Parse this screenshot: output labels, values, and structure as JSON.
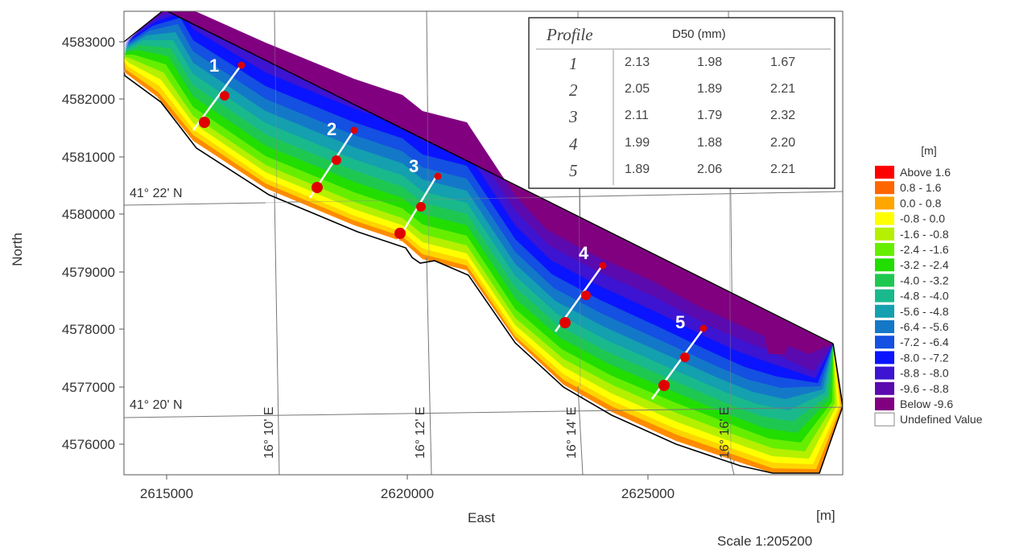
{
  "axes": {
    "x_title": "East",
    "y_title": "North",
    "unit": "[m]",
    "scale": "Scale 1:205200",
    "x_ticks": [
      "2615000",
      "2620000",
      "2625000"
    ],
    "y_ticks": [
      "4583000",
      "4582000",
      "4581000",
      "4580000",
      "4579000",
      "4578000",
      "4577000",
      "4576000"
    ]
  },
  "graticule": {
    "lat_labels": [
      "41° 22' N",
      "41° 20' N"
    ],
    "lon_labels": [
      "16° 10' E",
      "16° 12' E",
      "16° 14' E",
      "16° 16' E"
    ]
  },
  "profiles": [
    "1",
    "2",
    "3",
    "4",
    "5"
  ],
  "table": {
    "header_profile": "Profile",
    "header_d50": "D50 (mm)",
    "rows": [
      {
        "profile": "1",
        "values": [
          "2.13",
          "1.98",
          "1.67"
        ]
      },
      {
        "profile": "2",
        "values": [
          "2.05",
          "1.89",
          "2.21"
        ]
      },
      {
        "profile": "3",
        "values": [
          "2.11",
          "1.79",
          "2.32"
        ]
      },
      {
        "profile": "4",
        "values": [
          "1.99",
          "1.88",
          "2.20"
        ]
      },
      {
        "profile": "5",
        "values": [
          "1.89",
          "2.06",
          "2.21"
        ]
      }
    ]
  },
  "legend": {
    "title": "[m]",
    "items": [
      {
        "label": "Above  1.6",
        "color": "#ff0000"
      },
      {
        "label": "0.8 -  1.6",
        "color": "#ff6600"
      },
      {
        "label": "0.0 -  0.8",
        "color": "#ffa500"
      },
      {
        "label": "-0.8 -  0.0",
        "color": "#ffff00"
      },
      {
        "label": "-1.6 - -0.8",
        "color": "#b4f000"
      },
      {
        "label": "-2.4 - -1.6",
        "color": "#66ee00"
      },
      {
        "label": "-3.2 - -2.4",
        "color": "#22dd00"
      },
      {
        "label": "-4.0 - -3.2",
        "color": "#1ec850"
      },
      {
        "label": "-4.8 - -4.0",
        "color": "#19b98c"
      },
      {
        "label": "-5.6 - -4.8",
        "color": "#14a0af"
      },
      {
        "label": "-6.4 - -5.6",
        "color": "#1478c8"
      },
      {
        "label": "-7.2 - -6.4",
        "color": "#1450e1"
      },
      {
        "label": "-8.0 - -7.2",
        "color": "#0a14ff"
      },
      {
        "label": "-8.8 - -8.0",
        "color": "#3c14d2"
      },
      {
        "label": "-9.6 - -8.8",
        "color": "#5a0aaf"
      },
      {
        "label": "Below -9.6",
        "color": "#800080"
      },
      {
        "label": "Undefined Value",
        "color": "#ffffff"
      }
    ]
  }
}
